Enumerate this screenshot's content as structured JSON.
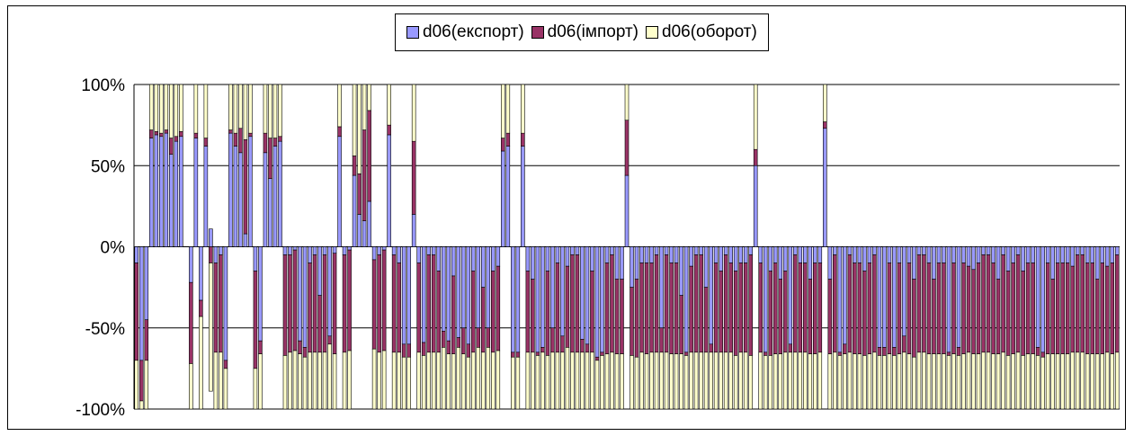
{
  "chart_data": {
    "type": "bar",
    "stacked": "percent",
    "title": "",
    "xlabel": "",
    "ylabel": "",
    "ylim": [
      -100,
      100
    ],
    "y_ticks": [
      "100%",
      "50%",
      "0%",
      "-50%",
      "-100%"
    ],
    "y_tick_values": [
      100,
      50,
      0,
      -50,
      -100
    ],
    "grid": true,
    "legend_position": "top",
    "series": [
      {
        "name": "d06(експорт)",
        "color": "#9999ff",
        "values": [
          -10,
          -70,
          -45,
          67,
          69,
          68,
          70,
          57,
          65,
          68,
          null,
          -22,
          67,
          -33,
          62,
          11,
          -10,
          -5,
          -70,
          70,
          62,
          58,
          8,
          68,
          -15,
          -58,
          58,
          42,
          62,
          65,
          -5,
          -5,
          -2,
          -58,
          -62,
          -10,
          -5,
          -30,
          -5,
          -55,
          -4,
          68,
          -5,
          -2,
          44,
          20,
          16,
          28,
          -8,
          -5,
          -2,
          69,
          -5,
          -10,
          -60,
          -60,
          20,
          -10,
          -59,
          -5,
          -5,
          -15,
          -52,
          -58,
          -18,
          -56,
          -50,
          -60,
          -15,
          -50,
          -25,
          -50,
          -15,
          -12,
          59,
          62,
          -65,
          -65,
          62,
          -15,
          -20,
          -65,
          -62,
          -15,
          -50,
          -10,
          -55,
          -12,
          -5,
          -5,
          -57,
          -60,
          -15,
          -68,
          -65,
          -10,
          -5,
          -20,
          -20,
          44,
          -25,
          -20,
          -10,
          -10,
          -10,
          -5,
          -50,
          -5,
          -10,
          -10,
          -30,
          -65,
          -12,
          -5,
          -5,
          -25,
          -60,
          -10,
          -15,
          -5,
          -10,
          -15,
          -10,
          -10,
          -5,
          50,
          -10,
          -65,
          -15,
          -10,
          -20,
          -15,
          -60,
          -5,
          -10,
          -10,
          -20,
          -10,
          -10,
          73,
          -20,
          -5,
          -65,
          -60,
          -5,
          -10,
          -10,
          -15,
          -10,
          -5,
          -62,
          -62,
          -10,
          -62,
          -10,
          -55,
          -10,
          -20,
          -5,
          -5,
          -10,
          -20,
          -10,
          -10,
          -65,
          -10,
          -62,
          -10,
          -12,
          -14,
          -10,
          -5,
          -5,
          -10,
          -20,
          -5,
          -15,
          -10,
          -5,
          -15,
          -10,
          -10,
          -62,
          -65,
          -10,
          -20,
          -10,
          -10,
          -10,
          -12,
          -5,
          -5,
          -10,
          -10,
          -20,
          -10,
          -12,
          -10,
          -5
        ]
      },
      {
        "name": "d06(імпорт)",
        "color": "#993366",
        "values": [
          -60,
          -25,
          -25,
          5,
          2,
          2,
          2,
          10,
          3,
          3,
          null,
          -50,
          3,
          -10,
          5,
          -10,
          -55,
          -60,
          -5,
          2,
          8,
          15,
          58,
          2,
          -60,
          -8,
          12,
          25,
          5,
          3,
          -62,
          -60,
          -62,
          -8,
          -6,
          -55,
          -60,
          -35,
          -60,
          -5,
          -62,
          6,
          -60,
          -62,
          12,
          25,
          56,
          56,
          -55,
          -60,
          -62,
          6,
          -60,
          -55,
          -8,
          -8,
          45,
          -55,
          -8,
          -60,
          -60,
          -50,
          -10,
          -8,
          -48,
          -6,
          -16,
          -8,
          -50,
          -12,
          -40,
          -12,
          -50,
          -52,
          8,
          8,
          -3,
          -3,
          8,
          -50,
          -45,
          -2,
          -3,
          -52,
          -15,
          -55,
          -10,
          -50,
          -60,
          -60,
          -8,
          -5,
          -50,
          -2,
          -2,
          -56,
          -60,
          -46,
          -46,
          34,
          -42,
          -48,
          -55,
          -56,
          -55,
          -60,
          -15,
          -60,
          -56,
          -56,
          -36,
          -2,
          -53,
          -60,
          -60,
          -40,
          -5,
          -55,
          -50,
          -60,
          -55,
          -52,
          -55,
          -55,
          -62,
          10,
          -55,
          -2,
          -52,
          -56,
          -46,
          -50,
          -5,
          -60,
          -55,
          -55,
          -46,
          -56,
          -55,
          4,
          -46,
          -60,
          -2,
          -6,
          -60,
          -56,
          -56,
          -52,
          -56,
          -60,
          -5,
          -5,
          -56,
          -5,
          -56,
          -10,
          -56,
          -48,
          -60,
          -60,
          -56,
          -46,
          -56,
          -56,
          -2,
          -56,
          -5,
          -56,
          -53,
          -52,
          -56,
          -60,
          -60,
          -56,
          -46,
          -60,
          -52,
          -56,
          -60,
          -52,
          -56,
          -56,
          -5,
          -3,
          -56,
          -46,
          -56,
          -56,
          -56,
          -53,
          -60,
          -60,
          -56,
          -56,
          -46,
          -56,
          -53,
          -56,
          -60
        ]
      },
      {
        "name": "d06(оборот)",
        "color": "#ffffcc",
        "values": [
          -30,
          -30,
          -30,
          28,
          29,
          30,
          28,
          33,
          32,
          29,
          null,
          -28,
          30,
          -57,
          33,
          -79,
          -35,
          -35,
          -25,
          28,
          30,
          27,
          34,
          30,
          -25,
          -34,
          30,
          33,
          33,
          32,
          -33,
          -35,
          -36,
          -34,
          -32,
          -35,
          -35,
          -35,
          -35,
          -40,
          -34,
          26,
          -35,
          -36,
          44,
          55,
          28,
          16,
          -37,
          -35,
          -36,
          25,
          -35,
          -35,
          -32,
          -32,
          35,
          -35,
          -33,
          -35,
          -35,
          -35,
          -38,
          -34,
          -34,
          -38,
          -34,
          -32,
          -35,
          -38,
          -35,
          -38,
          -35,
          -36,
          33,
          30,
          -32,
          -32,
          30,
          -35,
          -35,
          -33,
          -35,
          -33,
          -35,
          -35,
          -35,
          -38,
          -35,
          -35,
          -35,
          -35,
          -35,
          -30,
          -33,
          -34,
          -35,
          -34,
          -34,
          22,
          -33,
          -32,
          -35,
          -34,
          -35,
          -35,
          -35,
          -35,
          -34,
          -34,
          -34,
          -33,
          -35,
          -35,
          -35,
          -35,
          -35,
          -35,
          -35,
          -35,
          -35,
          -33,
          -35,
          -35,
          -33,
          40,
          -35,
          -33,
          -33,
          -34,
          -34,
          -35,
          -35,
          -35,
          -35,
          -35,
          -34,
          -34,
          -35,
          23,
          -34,
          -35,
          -33,
          -34,
          -35,
          -34,
          -34,
          -33,
          -34,
          -35,
          -33,
          -33,
          -34,
          -33,
          -34,
          -35,
          -34,
          -32,
          -35,
          -35,
          -34,
          -34,
          -34,
          -34,
          -33,
          -34,
          -33,
          -34,
          -35,
          -34,
          -34,
          -35,
          -35,
          -34,
          -34,
          -35,
          -33,
          -34,
          -35,
          -33,
          -34,
          -34,
          -35,
          -32,
          -34,
          -34,
          -34,
          -34,
          -34,
          -35,
          -35,
          -35,
          -34,
          -34,
          -34,
          -34,
          -35,
          -34,
          -35
        ]
      }
    ]
  }
}
